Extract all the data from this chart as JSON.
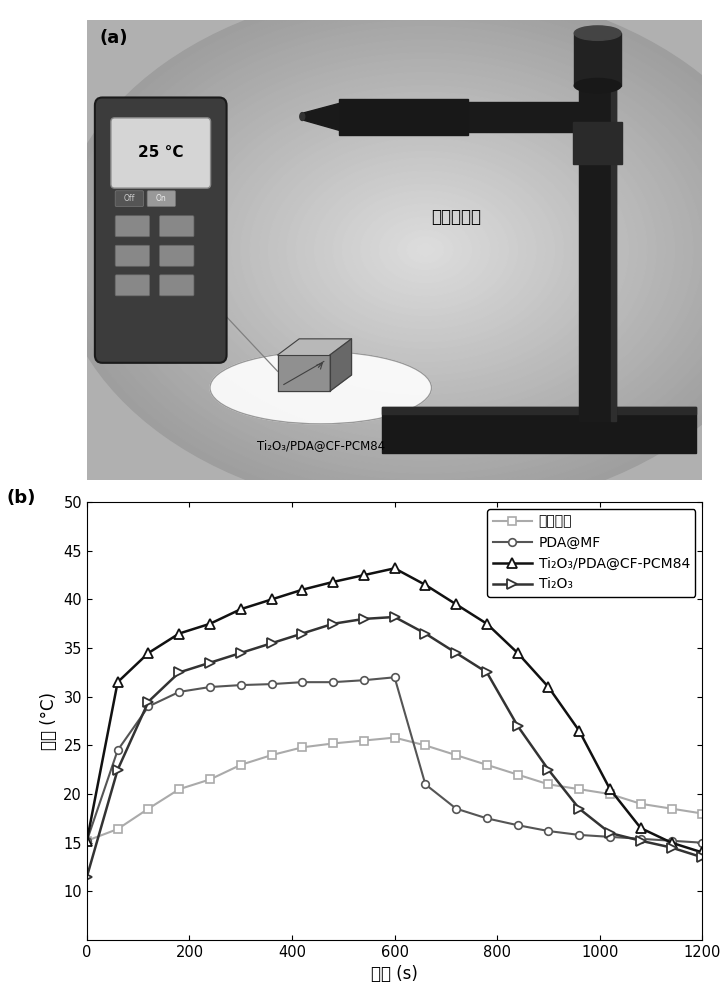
{
  "panel_b": {
    "xlabel": "时间 (s)",
    "ylabel": "温度 (°C)",
    "xlim": [
      0,
      1200
    ],
    "ylim": [
      5,
      50
    ],
    "xticks": [
      0,
      200,
      400,
      600,
      800,
      1000,
      1200
    ],
    "yticks": [
      10,
      15,
      20,
      25,
      30,
      35,
      40,
      45,
      50
    ],
    "legend_labels": [
      "环境温度",
      "PDA@MF",
      "Ti₂O₃/PDA@CF-PCM84",
      "Ti₂O₃"
    ],
    "series": {
      "ambient": {
        "color": "#aaaaaa",
        "x": [
          0,
          60,
          120,
          180,
          240,
          300,
          360,
          420,
          480,
          540,
          600,
          660,
          720,
          780,
          840,
          900,
          960,
          1020,
          1080,
          1140,
          1200
        ],
        "y": [
          15.2,
          16.4,
          18.5,
          20.5,
          21.5,
          23.0,
          24.0,
          24.8,
          25.2,
          25.5,
          25.8,
          25.0,
          24.0,
          23.0,
          22.0,
          21.0,
          20.5,
          20.0,
          19.0,
          18.5,
          18.0
        ]
      },
      "pda_mf": {
        "color": "#555555",
        "x": [
          0,
          60,
          120,
          180,
          240,
          300,
          360,
          420,
          480,
          540,
          600,
          660,
          720,
          780,
          840,
          900,
          960,
          1020,
          1080,
          1140,
          1200
        ],
        "y": [
          15.2,
          24.5,
          29.0,
          30.5,
          31.0,
          31.2,
          31.3,
          31.5,
          31.5,
          31.7,
          32.0,
          21.0,
          18.5,
          17.5,
          16.8,
          16.2,
          15.8,
          15.6,
          15.4,
          15.2,
          15.0
        ]
      },
      "ti2o3_pda": {
        "color": "#111111",
        "x": [
          0,
          60,
          120,
          180,
          240,
          300,
          360,
          420,
          480,
          540,
          600,
          660,
          720,
          780,
          840,
          900,
          960,
          1020,
          1080,
          1140,
          1200
        ],
        "y": [
          15.2,
          31.5,
          34.5,
          36.5,
          37.5,
          39.0,
          40.0,
          41.0,
          41.8,
          42.5,
          43.2,
          41.5,
          39.5,
          37.5,
          34.5,
          31.0,
          26.5,
          20.5,
          16.5,
          15.0,
          14.0
        ]
      },
      "ti2o3": {
        "color": "#333333",
        "x": [
          0,
          60,
          120,
          180,
          240,
          300,
          360,
          420,
          480,
          540,
          600,
          660,
          720,
          780,
          840,
          900,
          960,
          1020,
          1080,
          1140,
          1200
        ],
        "y": [
          11.5,
          22.5,
          29.5,
          32.5,
          33.5,
          34.5,
          35.5,
          36.5,
          37.5,
          38.0,
          38.2,
          36.5,
          34.5,
          32.5,
          27.0,
          22.5,
          18.5,
          16.0,
          15.2,
          14.5,
          13.5
        ]
      }
    }
  }
}
